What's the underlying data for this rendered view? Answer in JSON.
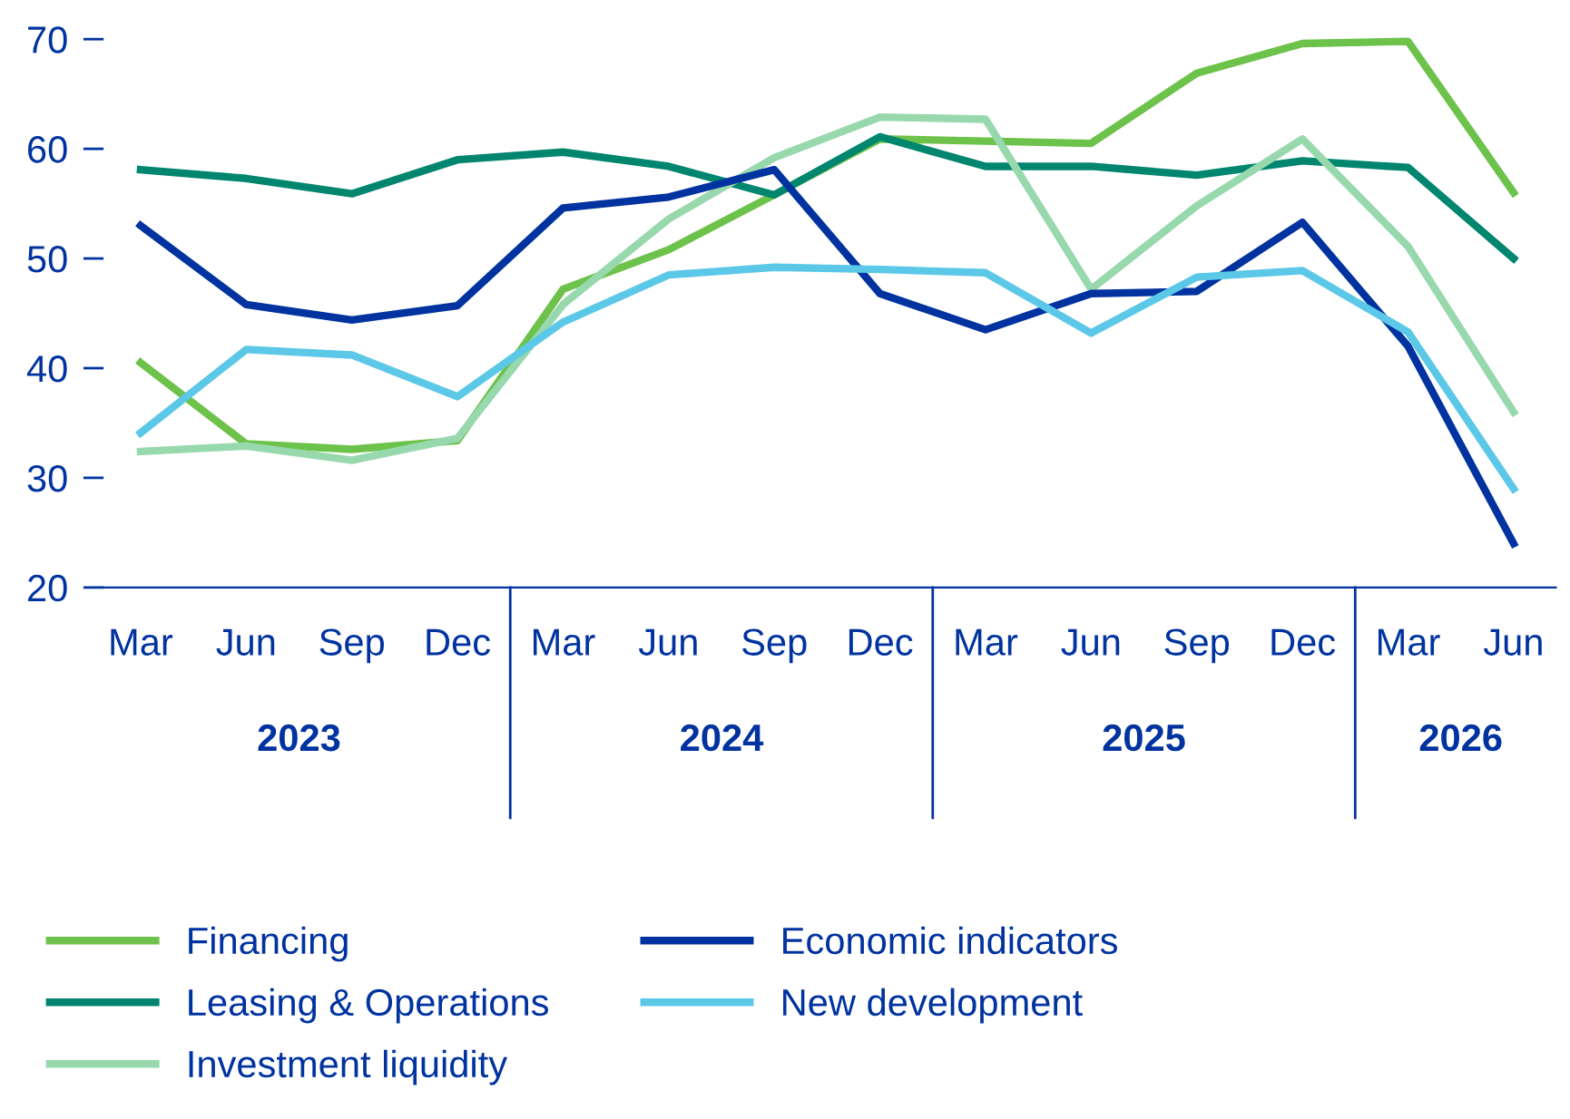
{
  "chart_data": {
    "type": "line",
    "categories": [
      "Mar",
      "Jun",
      "Sep",
      "Dec",
      "Mar",
      "Jun",
      "Sep",
      "Dec",
      "Mar",
      "Jun",
      "Sep",
      "Dec",
      "Mar",
      "Jun"
    ],
    "annotations": [
      "2023",
      "2024",
      "2025",
      "2026"
    ],
    "ylim": [
      20,
      70
    ],
    "yticks": [
      20,
      30,
      40,
      50,
      60,
      70
    ],
    "grid": false,
    "legend": "bottom",
    "marker": "none",
    "line_style": "solid",
    "series": [
      {
        "name": "Financing",
        "color": "#6cc24a",
        "values": [
          40.5,
          33.1,
          32.6,
          33.4,
          47.2,
          50.8,
          55.8,
          60.9,
          60.7,
          60.5,
          66.9,
          69.6,
          69.8,
          56
        ]
      },
      {
        "name": "Leasing & Operations",
        "color": "#00856f",
        "values": [
          58.1,
          57.3,
          55.9,
          59.0,
          59.7,
          58.4,
          55.8,
          61.1,
          58.4,
          58.4,
          57.6,
          58.9,
          58.3,
          50
        ]
      },
      {
        "name": "Investment liquidity",
        "color": "#98d8ad",
        "values": [
          32.4,
          32.9,
          31.6,
          33.6,
          45.8,
          53.6,
          59.2,
          62.9,
          62.7,
          47.2,
          54.8,
          60.9,
          51.1,
          36
        ]
      },
      {
        "name": "Economic indicators",
        "color": "#0033a0",
        "values": [
          53.0,
          45.8,
          44.4,
          45.7,
          54.6,
          55.6,
          58.1,
          46.8,
          43.5,
          46.8,
          47.0,
          53.3,
          42.0,
          24
        ]
      },
      {
        "name": "New development",
        "color": "#5bc8e8",
        "values": [
          34.1,
          41.7,
          41.2,
          37.4,
          44.2,
          48.5,
          49.2,
          49.0,
          48.7,
          43.2,
          48.3,
          48.9,
          43.3,
          29
        ]
      }
    ]
  }
}
